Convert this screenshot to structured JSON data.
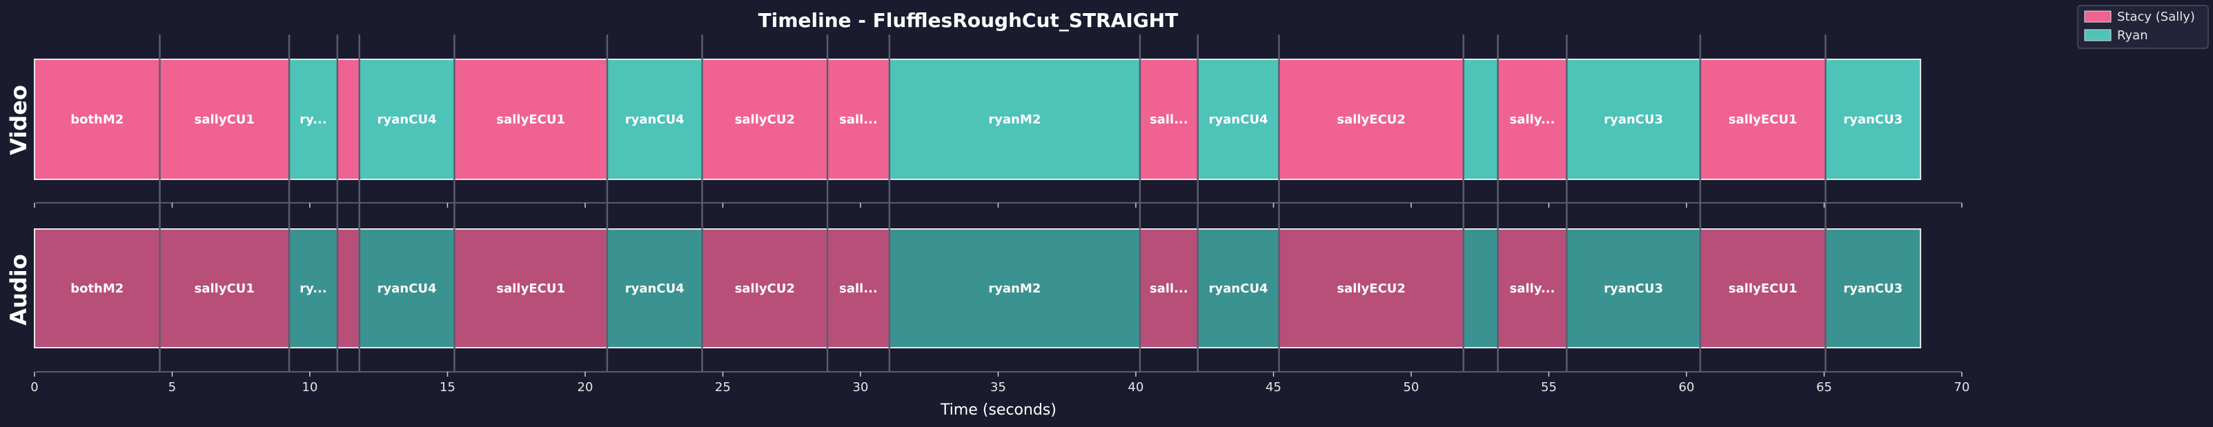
{
  "chart_data": {
    "type": "timeline",
    "title": "Timeline - FlufflesRoughCut_STRAIGHT",
    "xlabel": "Time (seconds)",
    "xlim": [
      0,
      70
    ],
    "xticks": [
      0,
      5,
      10,
      15,
      20,
      25,
      30,
      35,
      40,
      45,
      50,
      55,
      60,
      65,
      70
    ],
    "tracks": [
      "Video",
      "Audio"
    ],
    "legend_position": "top-right",
    "legend": [
      {
        "name": "Stacy (Sally)",
        "speaker": "sally",
        "color": "#f06292"
      },
      {
        "name": "Ryan",
        "speaker": "ryan",
        "color": "#4ec3b8"
      }
    ],
    "colors": {
      "video": {
        "sally": "#f06292",
        "ryan": "#4ec3b8"
      },
      "audio": {
        "sally": "#b84f78",
        "ryan": "#3a9390"
      },
      "background": "#1a1b2e",
      "cut_line": "#5a5c6e"
    },
    "clips": [
      {
        "label": "bothM2",
        "start": 0.0,
        "end": 4.55,
        "speaker": "sally"
      },
      {
        "label": "sallyCU1",
        "start": 4.55,
        "end": 9.25,
        "speaker": "sally"
      },
      {
        "label": "ry...",
        "start": 9.25,
        "end": 11.0,
        "speaker": "ryan"
      },
      {
        "label": "",
        "start": 11.0,
        "end": 11.8,
        "speaker": "sally"
      },
      {
        "label": "ryanCU4",
        "start": 11.8,
        "end": 15.25,
        "speaker": "ryan"
      },
      {
        "label": "sallyECU1",
        "start": 15.25,
        "end": 20.8,
        "speaker": "sally"
      },
      {
        "label": "ryanCU4",
        "start": 20.8,
        "end": 24.25,
        "speaker": "ryan"
      },
      {
        "label": "sallyCU2",
        "start": 24.25,
        "end": 28.8,
        "speaker": "sally"
      },
      {
        "label": "sall...",
        "start": 28.8,
        "end": 31.05,
        "speaker": "sally"
      },
      {
        "label": "ryanM2",
        "start": 31.05,
        "end": 40.15,
        "speaker": "ryan"
      },
      {
        "label": "sall...",
        "start": 40.15,
        "end": 42.25,
        "speaker": "sally"
      },
      {
        "label": "ryanCU4",
        "start": 42.25,
        "end": 45.2,
        "speaker": "ryan"
      },
      {
        "label": "sallyECU2",
        "start": 45.2,
        "end": 51.9,
        "speaker": "sally"
      },
      {
        "label": "",
        "start": 51.9,
        "end": 53.15,
        "speaker": "ryan"
      },
      {
        "label": "sally...",
        "start": 53.15,
        "end": 55.65,
        "speaker": "sally"
      },
      {
        "label": "ryanCU3",
        "start": 55.65,
        "end": 60.5,
        "speaker": "ryan"
      },
      {
        "label": "sallyECU1",
        "start": 60.5,
        "end": 65.05,
        "speaker": "sally"
      },
      {
        "label": "ryanCU3",
        "start": 65.05,
        "end": 68.5,
        "speaker": "ryan"
      }
    ]
  }
}
